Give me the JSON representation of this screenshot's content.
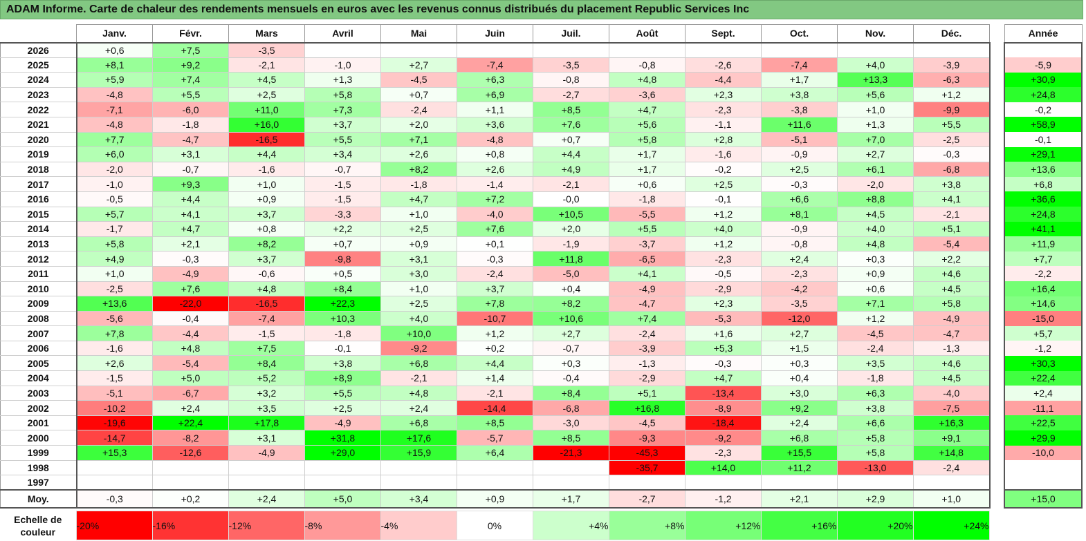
{
  "title": "ADAM Informe. Carte de chaleur des rendements mensuels en euros avec les revenus connus distribués du placement Republic Services Inc",
  "annual_header": "Année",
  "avg_label": "Moy.",
  "scale": {
    "label": "Echelle de couleur",
    "stops": [
      "-20%",
      "-16%",
      "-12%",
      "-8%",
      "-4%",
      "0%",
      "+4%",
      "+8%",
      "+12%",
      "+16%",
      "+20%",
      "+24%"
    ],
    "colors": [
      "#ff0000",
      "#ff3333",
      "#ff6666",
      "#ff9999",
      "#ffcccc",
      "#ffffff",
      "#ccffcc",
      "#99ff99",
      "#77ff77",
      "#44ff44",
      "#22ff22",
      "#00ff00"
    ]
  },
  "chart_data": {
    "type": "heatmap",
    "title": "ADAM Informe. Carte de chaleur des rendements mensuels en euros avec les revenus connus distribués du placement Republic Services Inc",
    "months": [
      "Janv.",
      "Févr.",
      "Mars",
      "Avril",
      "Mai",
      "Juin",
      "Juil.",
      "Août",
      "Sept.",
      "Oct.",
      "Nov.",
      "Déc."
    ],
    "rows": [
      {
        "year": "2026",
        "values": [
          "+0,6",
          "+7,5",
          "-3,5",
          "",
          "",
          "",
          "",
          "",
          "",
          "",
          "",
          ""
        ],
        "annual": ""
      },
      {
        "year": "2025",
        "values": [
          "+8,1",
          "+9,2",
          "-2,1",
          "-1,0",
          "+2,7",
          "-7,4",
          "-3,5",
          "-0,8",
          "-2,6",
          "-7,4",
          "+4,0",
          "-3,9"
        ],
        "annual": "-5,9"
      },
      {
        "year": "2024",
        "values": [
          "+5,9",
          "+7,4",
          "+4,5",
          "+1,3",
          "-4,5",
          "+6,3",
          "-0,8",
          "+4,8",
          "-4,4",
          "+1,7",
          "+13,3",
          "-6,3"
        ],
        "annual": "+30,9"
      },
      {
        "year": "2023",
        "values": [
          "-4,8",
          "+5,5",
          "+2,5",
          "+5,8",
          "+0,7",
          "+6,9",
          "-2,7",
          "-3,6",
          "+2,3",
          "+3,8",
          "+5,6",
          "+1,2"
        ],
        "annual": "+24,8"
      },
      {
        "year": "2022",
        "values": [
          "-7,1",
          "-6,0",
          "+11,0",
          "+7,3",
          "-2,4",
          "+1,1",
          "+8,5",
          "+4,7",
          "-2,3",
          "-3,8",
          "+1,0",
          "-9,9"
        ],
        "annual": "-0,2"
      },
      {
        "year": "2021",
        "values": [
          "-4,8",
          "-1,8",
          "+16,0",
          "+3,7",
          "+2,0",
          "+3,6",
          "+7,6",
          "+5,6",
          "-1,1",
          "+11,6",
          "+1,3",
          "+5,5"
        ],
        "annual": "+58,9"
      },
      {
        "year": "2020",
        "values": [
          "+7,7",
          "-4,7",
          "-16,5",
          "+5,5",
          "+7,1",
          "-4,8",
          "+0,7",
          "+5,8",
          "+2,8",
          "-5,1",
          "+7,0",
          "-2,5"
        ],
        "annual": "-0,1"
      },
      {
        "year": "2019",
        "values": [
          "+6,0",
          "+3,1",
          "+4,4",
          "+3,4",
          "+2,6",
          "+0,8",
          "+4,4",
          "+1,7",
          "-1,6",
          "-0,9",
          "+2,7",
          "-0,3"
        ],
        "annual": "+29,1"
      },
      {
        "year": "2018",
        "values": [
          "-2,0",
          "-0,7",
          "-1,6",
          "-0,7",
          "+8,2",
          "+2,6",
          "+4,9",
          "+1,7",
          "-0,2",
          "+2,5",
          "+6,1",
          "-6,8"
        ],
        "annual": "+13,6"
      },
      {
        "year": "2017",
        "values": [
          "-1,0",
          "+9,3",
          "+1,0",
          "-1,5",
          "-1,8",
          "-1,4",
          "-2,1",
          "+0,6",
          "+2,5",
          "-0,3",
          "-2,0",
          "+3,8"
        ],
        "annual": "+6,8"
      },
      {
        "year": "2016",
        "values": [
          "-0,5",
          "+4,4",
          "+0,9",
          "-1,5",
          "+4,7",
          "+7,2",
          "-0,0",
          "-1,8",
          "-0,1",
          "+6,6",
          "+8,8",
          "+4,1"
        ],
        "annual": "+36,6"
      },
      {
        "year": "2015",
        "values": [
          "+5,7",
          "+4,1",
          "+3,7",
          "-3,3",
          "+1,0",
          "-4,0",
          "+10,5",
          "-5,5",
          "+1,2",
          "+8,1",
          "+4,5",
          "-2,1"
        ],
        "annual": "+24,8"
      },
      {
        "year": "2014",
        "values": [
          "-1,7",
          "+4,7",
          "+0,8",
          "+2,2",
          "+2,5",
          "+7,6",
          "+2,0",
          "+5,5",
          "+4,0",
          "-0,9",
          "+4,0",
          "+5,1"
        ],
        "annual": "+41,1"
      },
      {
        "year": "2013",
        "values": [
          "+5,8",
          "+2,1",
          "+8,2",
          "+0,7",
          "+0,9",
          "+0,1",
          "-1,9",
          "-3,7",
          "+1,2",
          "-0,8",
          "+4,8",
          "-5,4"
        ],
        "annual": "+11,9"
      },
      {
        "year": "2012",
        "values": [
          "+4,9",
          "-0,3",
          "+3,7",
          "-9,8",
          "+3,1",
          "-0,3",
          "+11,8",
          "-6,5",
          "-2,3",
          "+2,4",
          "+0,3",
          "+2,2"
        ],
        "annual": "+7,7"
      },
      {
        "year": "2011",
        "values": [
          "+1,0",
          "-4,9",
          "-0,6",
          "+0,5",
          "+3,0",
          "-2,4",
          "-5,0",
          "+4,1",
          "-0,5",
          "-2,3",
          "+0,9",
          "+4,6"
        ],
        "annual": "-2,2"
      },
      {
        "year": "2010",
        "values": [
          "-2,5",
          "+7,6",
          "+4,8",
          "+8,4",
          "+1,0",
          "+3,7",
          "+0,4",
          "-4,9",
          "-2,9",
          "-4,2",
          "+0,6",
          "+4,5"
        ],
        "annual": "+16,4"
      },
      {
        "year": "2009",
        "values": [
          "+13,6",
          "-22,0",
          "-16,5",
          "+22,3",
          "+2,5",
          "+7,8",
          "+8,2",
          "-4,7",
          "+2,3",
          "-3,5",
          "+7,1",
          "+5,8"
        ],
        "annual": "+14,6"
      },
      {
        "year": "2008",
        "values": [
          "-5,6",
          "-0,4",
          "-7,4",
          "+10,3",
          "+4,0",
          "-10,7",
          "+10,6",
          "+7,4",
          "-5,3",
          "-12,0",
          "+1,2",
          "-4,9"
        ],
        "annual": "-15,0"
      },
      {
        "year": "2007",
        "values": [
          "+7,8",
          "-4,4",
          "-1,5",
          "-1,8",
          "+10,0",
          "+1,2",
          "+2,7",
          "-2,4",
          "+1,6",
          "+2,7",
          "-4,5",
          "-4,7"
        ],
        "annual": "+5,7"
      },
      {
        "year": "2006",
        "values": [
          "-1,6",
          "+4,8",
          "+7,5",
          "-0,1",
          "-9,2",
          "+0,2",
          "-0,7",
          "-3,9",
          "+5,3",
          "+1,5",
          "-2,4",
          "-1,3"
        ],
        "annual": "-1,2"
      },
      {
        "year": "2005",
        "values": [
          "+2,6",
          "-5,4",
          "+8,4",
          "+3,8",
          "+6,8",
          "+4,4",
          "+0,3",
          "-1,3",
          "-0,3",
          "+0,3",
          "+3,5",
          "+4,6"
        ],
        "annual": "+30,3"
      },
      {
        "year": "2004",
        "values": [
          "-1,5",
          "+5,0",
          "+5,2",
          "+8,9",
          "-2,1",
          "+1,4",
          "-0,4",
          "-2,9",
          "+4,7",
          "+0,4",
          "-1,8",
          "+4,5"
        ],
        "annual": "+22,4"
      },
      {
        "year": "2003",
        "values": [
          "-5,1",
          "-6,7",
          "+3,2",
          "+5,5",
          "+4,8",
          "-2,1",
          "+8,4",
          "+5,1",
          "-13,4",
          "+3,0",
          "+6,3",
          "-4,0"
        ],
        "annual": "+2,4"
      },
      {
        "year": "2002",
        "values": [
          "-10,2",
          "+2,4",
          "+3,5",
          "+2,5",
          "+2,4",
          "-14,4",
          "-6,8",
          "+16,8",
          "-8,9",
          "+9,2",
          "+3,8",
          "-7,5"
        ],
        "annual": "-11,1"
      },
      {
        "year": "2001",
        "values": [
          "-19,6",
          "+22,4",
          "+17,8",
          "-4,9",
          "+6,8",
          "+8,5",
          "-3,0",
          "-4,5",
          "-18,4",
          "+2,4",
          "+6,6",
          "+16,3"
        ],
        "annual": "+22,5"
      },
      {
        "year": "2000",
        "values": [
          "-14,7",
          "-8,2",
          "+3,1",
          "+31,8",
          "+17,6",
          "-5,7",
          "+8,5",
          "-9,3",
          "-9,2",
          "+6,8",
          "+5,8",
          "+9,1"
        ],
        "annual": "+29,9"
      },
      {
        "year": "1999",
        "values": [
          "+15,3",
          "-12,6",
          "-4,9",
          "+29,0",
          "+15,9",
          "+6,4",
          "-21,3",
          "-45,3",
          "-2,3",
          "+15,5",
          "+5,8",
          "+14,8"
        ],
        "annual": "-10,0"
      },
      {
        "year": "1998",
        "values": [
          "",
          "",
          "",
          "",
          "",
          "",
          "",
          "-35,7",
          "+14,0",
          "+11,2",
          "-13,0",
          "-2,4"
        ],
        "annual": ""
      },
      {
        "year": "1997",
        "values": [
          "",
          "",
          "",
          "",
          "",
          "",
          "",
          "",
          "",
          "",
          "",
          ""
        ],
        "annual": ""
      }
    ],
    "average": {
      "values": [
        "-0,3",
        "+0,2",
        "+2,4",
        "+5,0",
        "+3,4",
        "+0,9",
        "+1,7",
        "-2,7",
        "-1,2",
        "+2,1",
        "+2,9",
        "+1,0"
      ],
      "annual": "+15,0"
    }
  }
}
